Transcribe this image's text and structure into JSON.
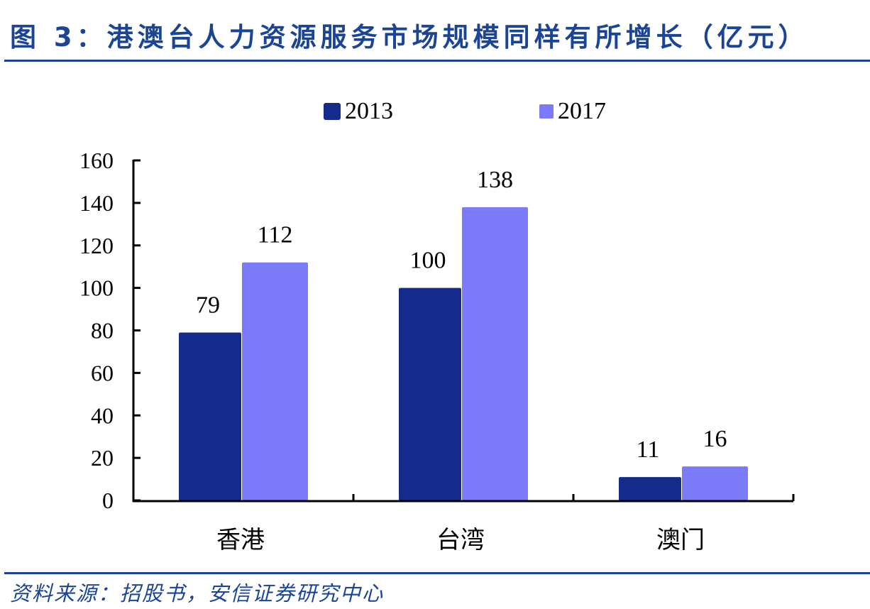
{
  "header": {
    "title": "图 3：港澳台人力资源服务市场规模同样有所增长（亿元）"
  },
  "footer": {
    "source": "资料来源：招股书，安信证券研究中心"
  },
  "legend": [
    {
      "label": "2013",
      "color": "#142b8c"
    },
    {
      "label": "2017",
      "color": "#7b7bfa"
    }
  ],
  "chart_data": {
    "type": "bar",
    "title": "图 3：港澳台人力资源服务市场规模同样有所增长（亿元）",
    "categories": [
      "香港",
      "台湾",
      "澳门"
    ],
    "series": [
      {
        "name": "2013",
        "values": [
          79,
          100,
          11
        ],
        "color": "#142b8c"
      },
      {
        "name": "2017",
        "values": [
          112,
          138,
          16
        ],
        "color": "#7b7bfa"
      }
    ],
    "xlabel": "",
    "ylabel": "",
    "ylim": [
      0,
      160
    ],
    "yticks": [
      0,
      20,
      40,
      60,
      80,
      100,
      120,
      140,
      160
    ],
    "grid": false,
    "legend_position": "top",
    "data_labels": true,
    "unit": "亿元"
  }
}
